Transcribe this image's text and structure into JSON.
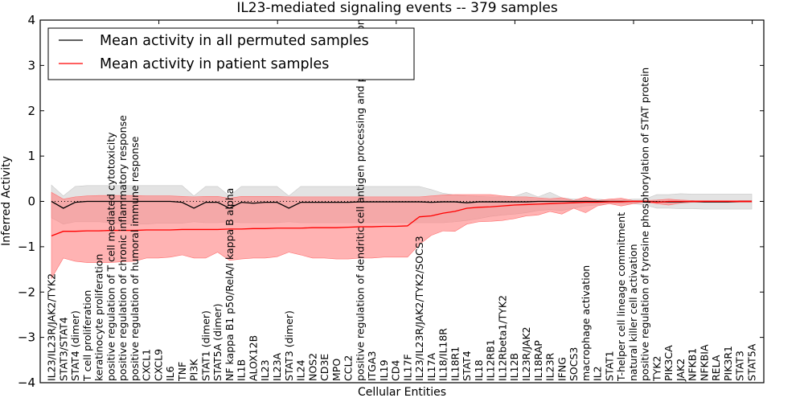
{
  "chart_data": {
    "type": "line",
    "title": "IL23-mediated signaling events -- 379 samples",
    "xlabel": "Cellular Entities",
    "ylabel": "Inferred Activity",
    "ylim": [
      -4,
      4
    ],
    "yticks": [
      "4",
      "3",
      "2",
      "1",
      "0",
      "−1",
      "−2",
      "−3",
      "−4"
    ],
    "ytick_values": [
      4,
      3,
      2,
      1,
      0,
      -1,
      -2,
      -3,
      -4
    ],
    "legend_position": "top-left",
    "legend": [
      {
        "label": "Mean activity in all permuted samples",
        "color": "#000000"
      },
      {
        "label": "Mean activity in patient samples",
        "color": "#ff0000"
      }
    ],
    "colors": {
      "permuted_line": "#000000",
      "patient_line": "#ff0000",
      "permuted_band": "#d9d9d9",
      "patient_band": "#ff8080"
    },
    "categories": [
      "IL23/IL23R/JAK2/TYK2",
      "STAT3/STAT4",
      "STAT4 (dimer)",
      "T cell proliferation",
      "keratinocyte proliferation",
      "positive regulation of T cell mediated cytotoxicity",
      "positive regulation of chronic inflammatory response",
      "positive regulation of humoral immune response",
      "CXCL1",
      "CXCL9",
      "IL6",
      "TNF",
      "PI3K",
      "STAT1 (dimer)",
      "STAT5A (dimer)",
      "NF kappa B1 p50/RelA/I kappa B alpha",
      "IL1B",
      "ALOX12B",
      "IL23",
      "IL23A",
      "STAT3 (dimer)",
      "IL24",
      "NOS2",
      "CD3E",
      "MPO",
      "CCL2",
      "positive regulation of dendritic cell antigen processing and presentation",
      "ITGA3",
      "IL19",
      "CD4",
      "IL17F",
      "IL23/IL23R/JAK2/TYK2/SOCS3",
      "IL17A",
      "IL18/IL18R",
      "IL18R1",
      "STAT4",
      "IL18",
      "IL12RB1",
      "IL12Rbeta1/TYK2",
      "IL12B",
      "IL23R/JAK2",
      "IL18RAP",
      "IL23R",
      "IFNG",
      "SOCS3",
      "macrophage activation",
      "IL2",
      "STAT1",
      "T-helper cell lineage commitment",
      "natural killer cell activation",
      "positive regulation of tyrosine phosphorylation of STAT protein",
      "TYK2",
      "PIK3CA",
      "JAK2",
      "NFKB1",
      "NFKBIA",
      "RELA",
      "PIK3R1",
      "STAT3",
      "STAT5A"
    ],
    "series": [
      {
        "name": "Mean activity in all permuted samples",
        "values": [
          0.0,
          -0.15,
          -0.02,
          0.0,
          0.0,
          0.0,
          0.0,
          0.0,
          0.0,
          0.0,
          0.0,
          -0.02,
          -0.15,
          -0.02,
          -0.02,
          -0.15,
          -0.02,
          -0.04,
          -0.02,
          -0.02,
          -0.15,
          -0.02,
          -0.02,
          -0.02,
          -0.02,
          -0.02,
          -0.01,
          -0.01,
          -0.01,
          -0.01,
          -0.01,
          -0.01,
          -0.02,
          -0.01,
          -0.01,
          -0.03,
          -0.01,
          -0.01,
          -0.01,
          -0.01,
          -0.01,
          0.0,
          0.0,
          0.0,
          0.0,
          0.0,
          0.0,
          0.0,
          0.0,
          0.0,
          0.0,
          -0.01,
          -0.01,
          -0.01,
          0.0,
          -0.01,
          -0.01,
          -0.01,
          0.0,
          0.0
        ],
        "band_upper": [
          0.36,
          0.12,
          0.33,
          0.35,
          0.35,
          0.35,
          0.35,
          0.35,
          0.35,
          0.35,
          0.35,
          0.35,
          0.12,
          0.33,
          0.33,
          0.12,
          0.33,
          0.33,
          0.33,
          0.33,
          0.12,
          0.33,
          0.33,
          0.33,
          0.33,
          0.33,
          0.33,
          0.33,
          0.33,
          0.33,
          0.33,
          0.33,
          0.26,
          0.18,
          0.14,
          0.12,
          0.11,
          0.1,
          0.1,
          0.11,
          0.2,
          0.1,
          0.2,
          0.08,
          0.05,
          0.05,
          0.05,
          0.03,
          0.03,
          0.05,
          0.05,
          0.15,
          0.15,
          0.17,
          0.16,
          0.16,
          0.16,
          0.16,
          0.16,
          0.16
        ],
        "band_lower": [
          -0.36,
          -0.5,
          -0.45,
          -0.45,
          -0.45,
          -0.47,
          -0.5,
          -0.5,
          -0.5,
          -0.48,
          -0.48,
          -0.48,
          -0.45,
          -0.47,
          -0.47,
          -0.45,
          -0.47,
          -0.47,
          -0.47,
          -0.47,
          -0.45,
          -0.47,
          -0.47,
          -0.47,
          -0.47,
          -0.47,
          -0.47,
          -0.47,
          -0.47,
          -0.47,
          -0.47,
          -0.47,
          -0.47,
          -0.47,
          -0.45,
          -0.42,
          -0.38,
          -0.33,
          -0.3,
          -0.28,
          -0.25,
          -0.2,
          -0.18,
          -0.2,
          -0.15,
          -0.1,
          -0.08,
          -0.05,
          -0.05,
          -0.05,
          -0.08,
          -0.15,
          -0.15,
          -0.16,
          -0.16,
          -0.17,
          -0.17,
          -0.17,
          -0.17,
          -0.17
        ]
      },
      {
        "name": "Mean activity in patient samples",
        "values": [
          -0.76,
          -0.66,
          -0.66,
          -0.65,
          -0.65,
          -0.64,
          -0.64,
          -0.64,
          -0.63,
          -0.63,
          -0.63,
          -0.62,
          -0.62,
          -0.62,
          -0.62,
          -0.61,
          -0.61,
          -0.6,
          -0.6,
          -0.59,
          -0.59,
          -0.59,
          -0.58,
          -0.58,
          -0.58,
          -0.57,
          -0.56,
          -0.56,
          -0.55,
          -0.55,
          -0.54,
          -0.34,
          -0.32,
          -0.26,
          -0.22,
          -0.15,
          -0.13,
          -0.12,
          -0.1,
          -0.08,
          -0.07,
          -0.06,
          -0.05,
          -0.04,
          -0.03,
          -0.02,
          -0.02,
          -0.01,
          -0.01,
          0.0,
          0.0,
          -0.02,
          0.0,
          0.0,
          0.0,
          0.0,
          0.0,
          0.0,
          0.0,
          0.0
        ],
        "band_upper": [
          0.2,
          0.05,
          0.1,
          0.12,
          0.13,
          0.13,
          0.13,
          0.13,
          0.12,
          0.12,
          0.12,
          0.11,
          0.1,
          0.11,
          0.11,
          0.07,
          0.11,
          0.11,
          0.11,
          0.11,
          0.1,
          0.1,
          0.1,
          0.1,
          0.1,
          0.1,
          0.1,
          0.1,
          0.1,
          0.1,
          0.1,
          0.1,
          0.12,
          0.14,
          0.15,
          0.15,
          0.15,
          0.15,
          0.12,
          0.1,
          0.1,
          0.08,
          0.06,
          0.08,
          0.02,
          0.1,
          0.02,
          0.05,
          0.07,
          0.02,
          0.02,
          0.03,
          0.05,
          0.03,
          0.02,
          0.02,
          0.02,
          0.02,
          0.02,
          0.02
        ],
        "band_lower": [
          -1.7,
          -1.25,
          -1.32,
          -1.35,
          -1.35,
          -1.35,
          -1.33,
          -1.32,
          -1.25,
          -1.25,
          -1.23,
          -1.18,
          -1.25,
          -1.25,
          -1.12,
          -1.3,
          -1.27,
          -1.25,
          -1.25,
          -1.22,
          -1.12,
          -1.18,
          -1.25,
          -1.25,
          -1.27,
          -1.27,
          -1.25,
          -1.25,
          -1.23,
          -1.23,
          -1.23,
          -0.95,
          -0.75,
          -0.65,
          -0.66,
          -0.5,
          -0.45,
          -0.44,
          -0.42,
          -0.38,
          -0.32,
          -0.3,
          -0.22,
          -0.28,
          -0.15,
          -0.25,
          -0.1,
          -0.05,
          -0.1,
          -0.05,
          -0.02,
          -0.05,
          -0.08,
          -0.04,
          -0.02,
          -0.02,
          -0.02,
          -0.02,
          -0.02,
          -0.02
        ]
      }
    ]
  }
}
